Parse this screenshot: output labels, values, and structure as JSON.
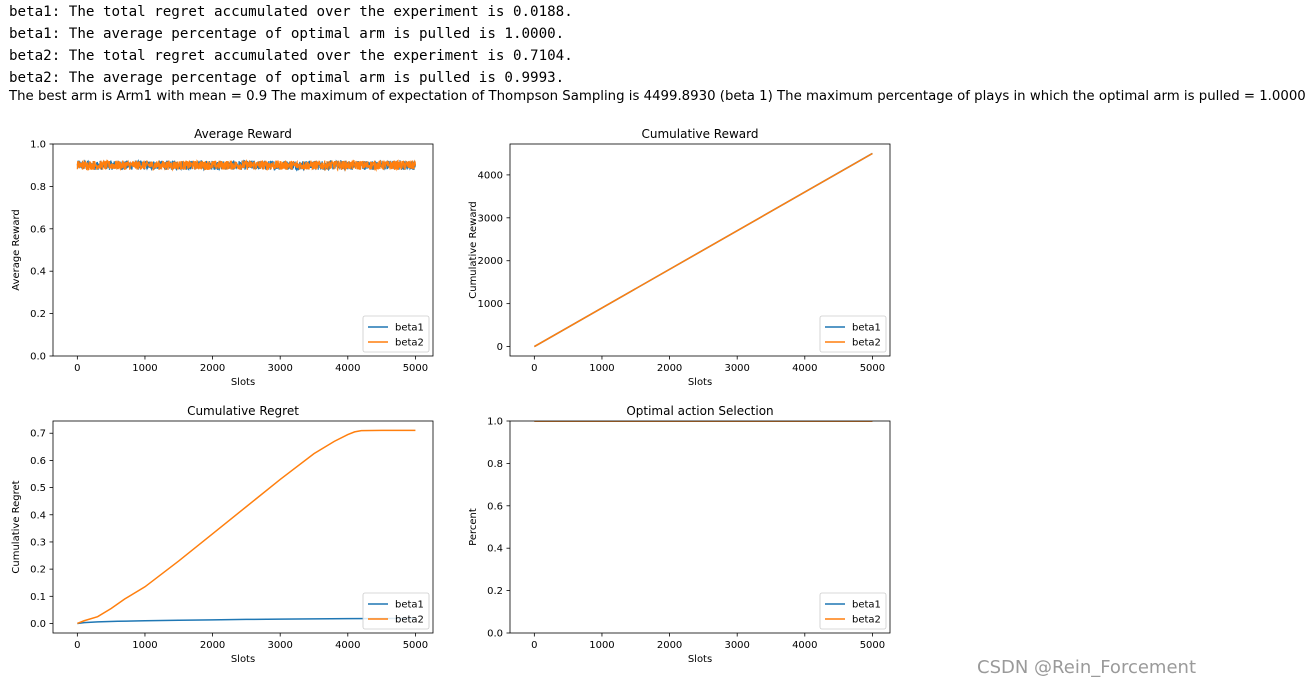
{
  "output_lines": [
    "beta1: The total regret accumulated over the experiment is 0.0188.",
    "beta1: The average percentage of optimal arm is pulled is 1.0000.",
    "beta2: The total regret accumulated over the experiment is 0.7104.",
    "beta2: The average percentage of optimal arm is pulled is 0.9993."
  ],
  "summary": "The best arm is Arm1 with mean = 0.9 The maximum of expectation of Thompson Sampling is 4499.8930 (beta 1) The maximum percentage of plays in which the optimal arm is pulled = 1.0000",
  "watermark": "CSDN @Rein_Forcement",
  "colors": {
    "beta1": "#1f77b4",
    "beta2": "#ff7f0e"
  },
  "chart_data": [
    {
      "type": "line",
      "title": "Average Reward",
      "xlabel": "Slots",
      "ylabel": "Average Reward",
      "xlim": [
        -360,
        5260
      ],
      "ylim": [
        0.0,
        1.0
      ],
      "xticks": [
        0,
        1000,
        2000,
        3000,
        4000,
        5000
      ],
      "yticks": [
        0.0,
        0.2,
        0.4,
        0.6,
        0.8,
        1.0
      ],
      "ytick_labels": [
        "0.0",
        "0.2",
        "0.4",
        "0.6",
        "0.8",
        "1.0"
      ],
      "legend": "lower-right",
      "grid": false,
      "noise": true,
      "series": [
        {
          "name": "beta1",
          "x": [
            0,
            5000
          ],
          "y": [
            0.9,
            0.9
          ],
          "spread": 0.022
        },
        {
          "name": "beta2",
          "x": [
            0,
            5000
          ],
          "y": [
            0.9,
            0.9
          ],
          "spread": 0.022
        }
      ]
    },
    {
      "type": "line",
      "title": "Cumulative Reward",
      "xlabel": "Slots",
      "ylabel": "Cumulative Reward",
      "xlim": [
        -360,
        5260
      ],
      "ylim": [
        -220,
        4720
      ],
      "xticks": [
        0,
        1000,
        2000,
        3000,
        4000,
        5000
      ],
      "yticks": [
        0,
        1000,
        2000,
        3000,
        4000
      ],
      "ytick_labels": [
        "0",
        "1000",
        "2000",
        "3000",
        "4000"
      ],
      "legend": "lower-right",
      "grid": false,
      "series": [
        {
          "name": "beta1",
          "x": [
            0,
            5000
          ],
          "y": [
            0,
            4499.893
          ]
        },
        {
          "name": "beta2",
          "x": [
            0,
            5000
          ],
          "y": [
            0,
            4499.3
          ]
        }
      ]
    },
    {
      "type": "line",
      "title": "Cumulative Regret",
      "xlabel": "Slots",
      "ylabel": "Cumulative Regret",
      "xlim": [
        -360,
        5260
      ],
      "ylim": [
        -0.035,
        0.745
      ],
      "xticks": [
        0,
        1000,
        2000,
        3000,
        4000,
        5000
      ],
      "yticks": [
        0.0,
        0.1,
        0.2,
        0.3,
        0.4,
        0.5,
        0.6,
        0.7
      ],
      "ytick_labels": [
        "0.0",
        "0.1",
        "0.2",
        "0.3",
        "0.4",
        "0.5",
        "0.6",
        "0.7"
      ],
      "legend": "lower-right",
      "grid": false,
      "series": [
        {
          "name": "beta1",
          "x": [
            0,
            100,
            300,
            600,
            1000,
            1500,
            2000,
            2500,
            3000,
            3500,
            4000,
            4500,
            5000
          ],
          "y": [
            0.0,
            0.003,
            0.006,
            0.008,
            0.01,
            0.012,
            0.0135,
            0.015,
            0.016,
            0.017,
            0.018,
            0.0185,
            0.0188
          ]
        },
        {
          "name": "beta2",
          "x": [
            0,
            100,
            300,
            500,
            700,
            1000,
            1500,
            2000,
            2500,
            3000,
            3500,
            3800,
            4000,
            4100,
            4200,
            4500,
            5000
          ],
          "y": [
            0.0,
            0.01,
            0.025,
            0.055,
            0.09,
            0.135,
            0.23,
            0.33,
            0.43,
            0.53,
            0.625,
            0.67,
            0.695,
            0.705,
            0.7095,
            0.7104,
            0.7104
          ]
        }
      ]
    },
    {
      "type": "line",
      "title": "Optimal action Selection",
      "xlabel": "Slots",
      "ylabel": "Percent",
      "xlim": [
        -360,
        5260
      ],
      "ylim": [
        0.0,
        1.0
      ],
      "xticks": [
        0,
        1000,
        2000,
        3000,
        4000,
        5000
      ],
      "yticks": [
        0.0,
        0.2,
        0.4,
        0.6,
        0.8,
        1.0
      ],
      "ytick_labels": [
        "0.0",
        "0.2",
        "0.4",
        "0.6",
        "0.8",
        "1.0"
      ],
      "legend": "lower-right",
      "grid": false,
      "series": [
        {
          "name": "beta1",
          "x": [
            0,
            5000
          ],
          "y": [
            1.0,
            1.0
          ]
        },
        {
          "name": "beta2",
          "x": [
            0,
            5000
          ],
          "y": [
            0.9993,
            0.9993
          ]
        }
      ]
    }
  ]
}
